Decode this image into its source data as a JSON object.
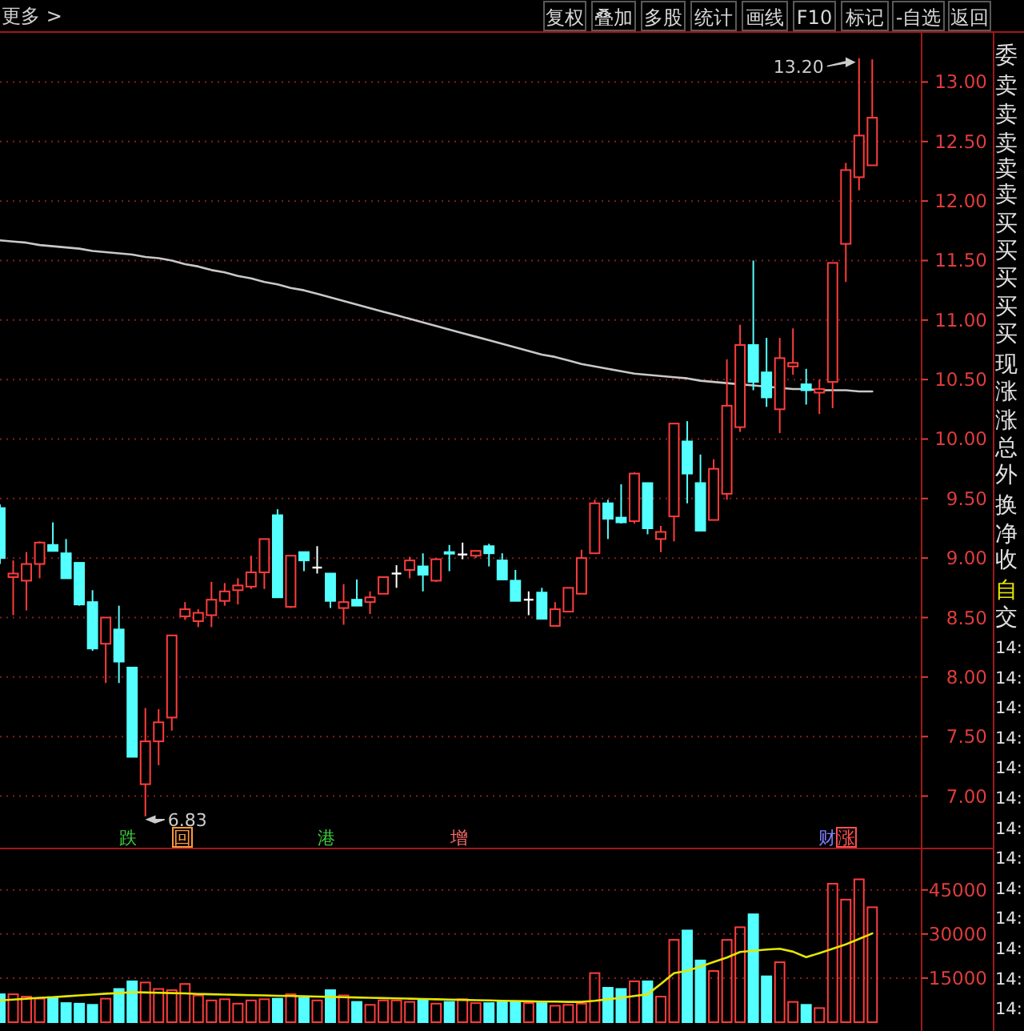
{
  "chart_data": [
    {
      "type": "candlestick",
      "categories": [
        null,
        null,
        null,
        null,
        null,
        null,
        null,
        null,
        null,
        null,
        null,
        null,
        null,
        null,
        null,
        null,
        null,
        null,
        null,
        null,
        null,
        null,
        null,
        null,
        null,
        null,
        null,
        null,
        null,
        null,
        null,
        null,
        null,
        null,
        null,
        null,
        null,
        null,
        null,
        null,
        null,
        null,
        null,
        null,
        null,
        null,
        null,
        null,
        null,
        null,
        null,
        null,
        null,
        null,
        null,
        null,
        null,
        null,
        null,
        null,
        null,
        null,
        null,
        null,
        null,
        null,
        null
      ],
      "ohlc": [
        [
          9.42,
          9.45,
          8.95,
          9.0
        ],
        [
          8.84,
          8.98,
          8.52,
          8.87
        ],
        [
          8.81,
          9.05,
          8.56,
          8.95
        ],
        [
          8.95,
          9.14,
          8.83,
          9.13
        ],
        [
          9.11,
          9.3,
          9.06,
          9.06
        ],
        [
          9.04,
          9.16,
          8.83,
          8.83
        ],
        [
          8.96,
          8.96,
          8.6,
          8.61
        ],
        [
          8.63,
          8.73,
          8.22,
          8.24
        ],
        [
          8.28,
          8.5,
          7.95,
          8.5
        ],
        [
          8.4,
          8.6,
          7.95,
          8.13
        ],
        [
          8.08,
          8.08,
          7.33,
          7.33
        ],
        [
          7.1,
          7.74,
          6.83,
          7.46
        ],
        [
          7.46,
          7.73,
          7.26,
          7.62
        ],
        [
          7.66,
          8.35,
          7.55,
          8.35
        ],
        [
          8.51,
          8.63,
          8.48,
          8.57
        ],
        [
          8.47,
          8.57,
          8.42,
          8.54
        ],
        [
          8.52,
          8.8,
          8.42,
          8.65
        ],
        [
          8.64,
          8.79,
          8.6,
          8.72
        ],
        [
          8.73,
          8.83,
          8.61,
          8.77
        ],
        [
          8.76,
          9.02,
          8.74,
          8.88
        ],
        [
          8.88,
          9.16,
          8.74,
          9.16
        ],
        [
          9.36,
          9.41,
          8.67,
          8.67
        ],
        [
          8.59,
          9.02,
          8.58,
          9.02
        ],
        [
          9.05,
          9.05,
          8.89,
          8.98
        ],
        [
          8.92,
          9.1,
          8.87,
          8.92
        ],
        [
          8.87,
          8.87,
          8.58,
          8.64
        ],
        [
          8.58,
          8.78,
          8.44,
          8.63
        ],
        [
          8.65,
          8.82,
          8.6,
          8.6
        ],
        [
          8.63,
          8.72,
          8.53,
          8.67
        ],
        [
          8.7,
          8.84,
          8.7,
          8.84
        ],
        [
          8.87,
          8.94,
          8.75,
          8.87
        ],
        [
          8.9,
          9.01,
          8.83,
          8.98
        ],
        [
          8.93,
          9.04,
          8.72,
          8.86
        ],
        [
          8.81,
          9.0,
          8.8,
          8.99
        ],
        [
          9.05,
          9.11,
          8.89,
          9.04
        ],
        [
          9.03,
          9.13,
          8.99,
          9.03
        ],
        [
          9.02,
          9.06,
          9.0,
          9.06
        ],
        [
          9.1,
          9.12,
          8.93,
          9.04
        ],
        [
          8.98,
          9.04,
          8.82,
          8.82
        ],
        [
          8.81,
          8.9,
          8.64,
          8.64
        ],
        [
          8.65,
          8.72,
          8.52,
          8.65
        ],
        [
          8.71,
          8.75,
          8.49,
          8.49
        ],
        [
          8.43,
          8.63,
          8.43,
          8.57
        ],
        [
          8.55,
          8.75,
          8.55,
          8.75
        ],
        [
          8.7,
          9.07,
          8.7,
          9.0
        ],
        [
          9.04,
          9.49,
          9.04,
          9.46
        ],
        [
          9.46,
          9.49,
          9.16,
          9.33
        ],
        [
          9.34,
          9.62,
          9.29,
          9.3
        ],
        [
          9.31,
          9.72,
          9.29,
          9.71
        ],
        [
          9.63,
          9.63,
          9.2,
          9.25
        ],
        [
          9.16,
          9.27,
          9.05,
          9.22
        ],
        [
          9.35,
          10.13,
          9.14,
          10.13
        ],
        [
          9.98,
          10.15,
          9.46,
          9.71
        ],
        [
          9.63,
          9.87,
          9.23,
          9.23
        ],
        [
          9.32,
          9.83,
          9.32,
          9.75
        ],
        [
          9.54,
          10.67,
          9.49,
          10.28
        ],
        [
          10.1,
          10.96,
          10.06,
          10.79
        ],
        [
          10.79,
          11.5,
          10.41,
          10.48
        ],
        [
          10.56,
          10.85,
          10.27,
          10.35
        ],
        [
          10.25,
          10.85,
          10.05,
          10.68
        ],
        [
          10.61,
          10.93,
          10.54,
          10.64
        ],
        [
          10.46,
          10.59,
          10.29,
          10.41
        ],
        [
          10.39,
          10.5,
          10.21,
          10.42
        ],
        [
          10.48,
          11.48,
          10.26,
          11.48
        ],
        [
          11.64,
          12.32,
          11.32,
          12.26
        ],
        [
          12.2,
          13.2,
          12.09,
          12.55
        ],
        [
          12.3,
          13.19,
          12.3,
          12.7
        ]
      ],
      "colors": [
        "#54ffff",
        "#ff3c3c",
        "#ff3c3c",
        "#ff3c3c",
        "#54ffff",
        "#54ffff",
        "#54ffff",
        "#54ffff",
        "#ff3c3c",
        "#54ffff",
        "#54ffff",
        "#ff3c3c",
        "#ff3c3c",
        "#ff3c3c",
        "#ff3c3c",
        "#ff3c3c",
        "#ff3c3c",
        "#ff3c3c",
        "#ff3c3c",
        "#ff3c3c",
        "#ff3c3c",
        "#54ffff",
        "#ff3c3c",
        "#54ffff",
        "#ffffff",
        "#54ffff",
        "#ff3c3c",
        "#54ffff",
        "#ff3c3c",
        "#ff3c3c",
        "#ffffff",
        "#ff3c3c",
        "#54ffff",
        "#ff3c3c",
        "#54ffff",
        "#ffffff",
        "#ff3c3c",
        "#54ffff",
        "#54ffff",
        "#54ffff",
        "#ffffff",
        "#54ffff",
        "#ff3c3c",
        "#ff3c3c",
        "#ff3c3c",
        "#ff3c3c",
        "#54ffff",
        "#54ffff",
        "#ff3c3c",
        "#54ffff",
        "#ff3c3c",
        "#ff3c3c",
        "#54ffff",
        "#54ffff",
        "#ff3c3c",
        "#ff3c3c",
        "#ff3c3c",
        "#54ffff",
        "#54ffff",
        "#ff3c3c",
        "#ff3c3c",
        "#54ffff",
        "#ff3c3c",
        "#ff3c3c",
        "#ff3c3c",
        "#ff3c3c",
        "#ff3c3c"
      ],
      "series": [
        {
          "type": "line",
          "color": "#c8c8c8",
          "values": [
            11.67,
            11.66,
            11.65,
            11.63,
            11.62,
            11.61,
            11.6,
            11.58,
            11.57,
            11.56,
            11.55,
            11.53,
            11.52,
            11.5,
            11.47,
            11.45,
            11.42,
            11.4,
            11.37,
            11.35,
            11.32,
            11.3,
            11.27,
            11.25,
            11.22,
            11.19,
            11.16,
            11.13,
            11.1,
            11.07,
            11.04,
            11.01,
            10.98,
            10.95,
            10.92,
            10.89,
            10.86,
            10.83,
            10.8,
            10.77,
            10.74,
            10.71,
            10.69,
            10.66,
            10.63,
            10.61,
            10.59,
            10.57,
            10.55,
            10.54,
            10.53,
            10.52,
            10.51,
            10.49,
            10.48,
            10.47,
            10.46,
            10.45,
            10.44,
            10.43,
            10.42,
            10.42,
            10.41,
            10.41,
            10.41,
            10.4,
            10.4
          ]
        }
      ],
      "ylim": [
        6.6,
        13.42
      ],
      "yticks": [
        {
          "value": 7,
          "label": "7.00"
        },
        {
          "value": 7.5,
          "label": "7.50"
        },
        {
          "value": 8,
          "label": "8.00"
        },
        {
          "value": 8.5,
          "label": "8.50"
        },
        {
          "value": 9,
          "label": "9.00"
        },
        {
          "value": 9.5,
          "label": "9.50"
        },
        {
          "value": 10,
          "label": "10.00"
        },
        {
          "value": 10.5,
          "label": "10.50"
        },
        {
          "value": 11,
          "label": "11.00"
        },
        {
          "value": 11.5,
          "label": "11.50"
        },
        {
          "value": 12,
          "label": "12.00"
        },
        {
          "value": 12.5,
          "label": "12.50"
        },
        {
          "value": 13,
          "label": "13.00"
        }
      ],
      "grid": "y",
      "annotations": [
        "13.20",
        "6.83",
        "跌",
        "回",
        "港",
        "增",
        "财",
        "涨"
      ]
    },
    {
      "type": "bar",
      "categories": [
        null,
        null,
        null,
        null,
        null,
        null,
        null,
        null,
        null,
        null,
        null,
        null,
        null,
        null,
        null,
        null,
        null,
        null,
        null,
        null,
        null,
        null,
        null,
        null,
        null,
        null,
        null,
        null,
        null,
        null,
        null,
        null,
        null,
        null,
        null,
        null,
        null,
        null,
        null,
        null,
        null,
        null,
        null,
        null,
        null,
        null,
        null,
        null,
        null,
        null,
        null,
        null,
        null,
        null,
        null,
        null,
        null,
        null,
        null,
        null,
        null,
        null,
        null,
        null,
        null,
        null,
        null
      ],
      "series": [
        {
          "values": [
            9500,
            9500,
            8700,
            8000,
            8500,
            6500,
            6300,
            5900,
            8000,
            11300,
            13900,
            13500,
            11300,
            10900,
            13000,
            9100,
            7400,
            7800,
            6300,
            7400,
            7800,
            8000,
            9500,
            8200,
            7400,
            10900,
            9100,
            6900,
            5900,
            7400,
            7400,
            6900,
            7400,
            6300,
            6900,
            7800,
            6500,
            6500,
            6900,
            6900,
            6500,
            6500,
            5600,
            5900,
            6300,
            16700,
            11700,
            11300,
            13900,
            13900,
            8700,
            28000,
            31200,
            21000,
            17400,
            28000,
            32300,
            36700,
            15600,
            20400,
            6900,
            5900,
            4800,
            47100,
            41700,
            48600,
            39100
          ],
          "colors": [
            "#54ffff",
            "#ff3c3c",
            "#ff3c3c",
            "#ff3c3c",
            "#54ffff",
            "#54ffff",
            "#54ffff",
            "#54ffff",
            "#ff3c3c",
            "#54ffff",
            "#54ffff",
            "#ff3c3c",
            "#ff3c3c",
            "#ff3c3c",
            "#ff3c3c",
            "#ff3c3c",
            "#ff3c3c",
            "#ff3c3c",
            "#ff3c3c",
            "#ff3c3c",
            "#ff3c3c",
            "#54ffff",
            "#ff3c3c",
            "#54ffff",
            "#ff3c3c",
            "#54ffff",
            "#ff3c3c",
            "#54ffff",
            "#ff3c3c",
            "#ff3c3c",
            "#ff3c3c",
            "#ff3c3c",
            "#54ffff",
            "#ff3c3c",
            "#54ffff",
            "#ff3c3c",
            "#ff3c3c",
            "#54ffff",
            "#54ffff",
            "#54ffff",
            "#ff3c3c",
            "#54ffff",
            "#ff3c3c",
            "#ff3c3c",
            "#ff3c3c",
            "#ff3c3c",
            "#54ffff",
            "#54ffff",
            "#ff3c3c",
            "#54ffff",
            "#ff3c3c",
            "#ff3c3c",
            "#54ffff",
            "#54ffff",
            "#ff3c3c",
            "#ff3c3c",
            "#ff3c3c",
            "#54ffff",
            "#54ffff",
            "#ff3c3c",
            "#ff3c3c",
            "#54ffff",
            "#ff3c3c",
            "#ff3c3c",
            "#ff3c3c",
            "#ff3c3c",
            "#ff3c3c"
          ]
        },
        {
          "type": "line",
          "color": "#e6e600",
          "values": [
            7400,
            7700,
            8000,
            8300,
            8500,
            8800,
            9100,
            9400,
            9700,
            9900,
            10200,
            10100,
            10000,
            9900,
            9800,
            9600,
            9500,
            9400,
            9300,
            9200,
            9100,
            9000,
            8900,
            8800,
            8700,
            8600,
            8500,
            8400,
            8300,
            8200,
            8100,
            8000,
            7900,
            7800,
            7700,
            7600,
            7500,
            7400,
            7300,
            7200,
            7100,
            7000,
            7000,
            6900,
            6900,
            7300,
            7800,
            8300,
            8900,
            9500,
            13000,
            16700,
            17500,
            18900,
            20500,
            22000,
            23900,
            24300,
            24700,
            25000,
            24000,
            22100,
            23500,
            25000,
            26500,
            28300,
            30200
          ]
        }
      ],
      "ylim": [
        -3000,
        58000
      ],
      "yticks": [
        15000,
        30000,
        45000
      ],
      "grid": "y"
    },
    {
      "type": "other",
      "annotations": [
        "更多 >",
        "复权",
        "叠加",
        "多股",
        "统计",
        "画线",
        "F10",
        "标记",
        "-自选",
        "返回",
        "委",
        "卖",
        "卖",
        "卖",
        "卖",
        "卖",
        "买",
        "买",
        "买",
        "买",
        "买",
        "现",
        "涨",
        "涨",
        "总",
        "外",
        "换",
        "净",
        "收",
        "自",
        "交",
        "14:",
        "14:",
        "14:",
        "14:",
        "14:",
        "14:",
        "14:",
        "14:",
        "14:",
        "14:",
        "14:",
        "14:",
        "14:"
      ]
    }
  ]
}
